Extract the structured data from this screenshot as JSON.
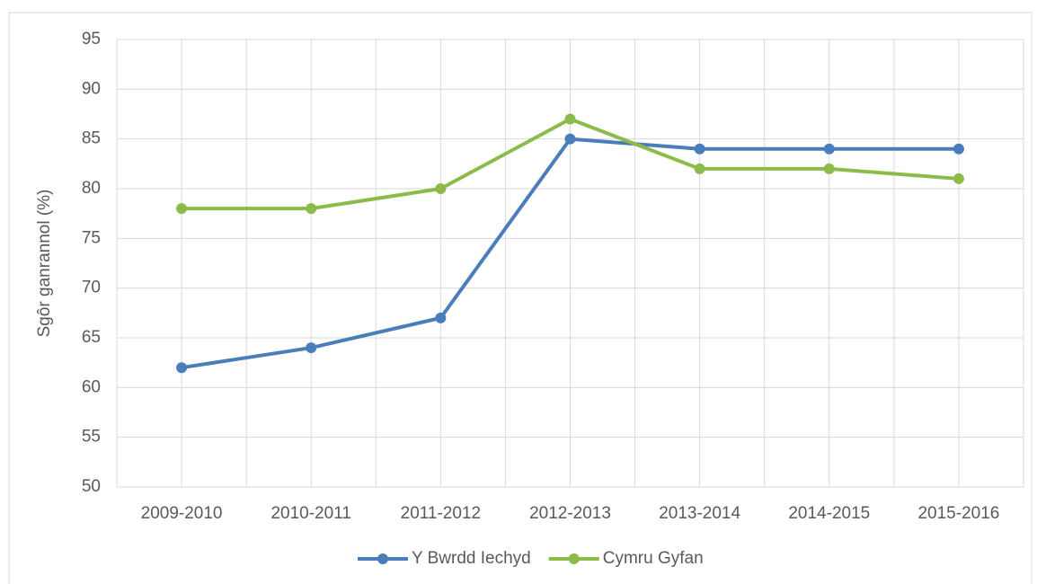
{
  "chart_data": {
    "type": "line",
    "y_label": "Sgôr ganrannol (%)",
    "categories": [
      "2009-2010",
      "2010-2011",
      "2011-2012",
      "2012-2013",
      "2013-2014",
      "2014-2015",
      "2015-2016"
    ],
    "series": [
      {
        "name": "Y Bwrdd Iechyd",
        "color": "#4a7ebb",
        "values": [
          62,
          64,
          67,
          85,
          84,
          84,
          84
        ]
      },
      {
        "name": "Cymru Gyfan",
        "color": "#8cbb4a",
        "values": [
          78,
          78,
          80,
          87,
          82,
          82,
          81
        ]
      }
    ],
    "ylim": [
      50,
      95
    ],
    "yticks": [
      50,
      55,
      60,
      65,
      70,
      75,
      80,
      85,
      90,
      95
    ],
    "grid": true,
    "legend": "bottom"
  }
}
